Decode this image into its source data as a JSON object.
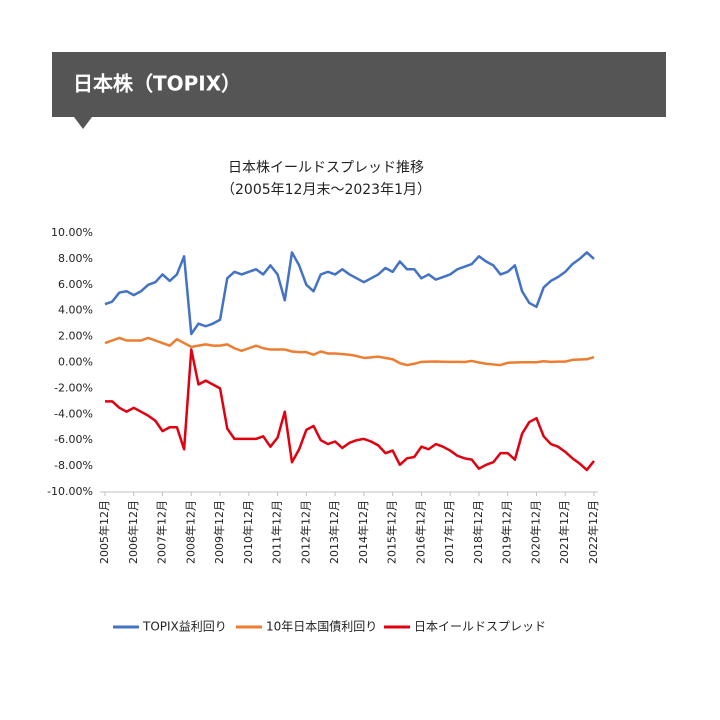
{
  "header": {
    "title": "日本株（TOPIX）"
  },
  "chart_data": {
    "type": "line",
    "title": "日本株イールドスプレッド推移",
    "subtitle": "（2005年12月末～2023年1月）",
    "categories": [
      "2005年12月",
      null,
      null,
      null,
      "2006年12月",
      null,
      null,
      null,
      "2007年12月",
      null,
      null,
      null,
      "2008年12月",
      null,
      null,
      null,
      "2009年12月",
      null,
      null,
      null,
      "2010年12月",
      null,
      null,
      null,
      "2011年12月",
      null,
      null,
      null,
      "2012年12月",
      null,
      null,
      null,
      "2013年12月",
      null,
      null,
      null,
      "2014年12月",
      null,
      null,
      null,
      "2015年12月",
      null,
      null,
      null,
      "2016年12月",
      null,
      null,
      null,
      "2017年12月",
      null,
      null,
      null,
      "2018年12月",
      null,
      null,
      null,
      "2019年12月",
      null,
      null,
      null,
      "2020年12月",
      null,
      null,
      null,
      "2021年12月",
      null,
      null,
      null,
      "2022年12月"
    ],
    "series": [
      {
        "name": "TOPIX益利回り",
        "color": "#4472c4",
        "values": [
          4.5,
          4.7,
          5.4,
          5.5,
          5.2,
          5.5,
          6.0,
          6.2,
          6.8,
          6.3,
          6.8,
          8.2,
          2.2,
          3.0,
          2.8,
          3.0,
          3.3,
          6.5,
          7.0,
          6.8,
          7.0,
          7.2,
          6.8,
          7.5,
          6.8,
          4.8,
          8.5,
          7.5,
          6.0,
          5.5,
          6.8,
          7.0,
          6.8,
          7.2,
          6.8,
          6.5,
          6.2,
          6.5,
          6.8,
          7.3,
          7.0,
          7.8,
          7.2,
          7.2,
          6.5,
          6.8,
          6.4,
          6.6,
          6.8,
          7.2,
          7.4,
          7.6,
          8.2,
          7.8,
          7.5,
          6.8,
          7.0,
          7.5,
          5.5,
          4.6,
          4.3,
          5.8,
          6.3,
          6.6,
          7.0,
          7.6,
          8.0,
          8.5,
          8.0
        ]
      },
      {
        "name": "10年日本国債利回り",
        "color": "#ed7d31",
        "values": [
          1.5,
          1.7,
          1.9,
          1.7,
          1.7,
          1.7,
          1.9,
          1.7,
          1.5,
          1.3,
          1.8,
          1.5,
          1.2,
          1.3,
          1.4,
          1.3,
          1.3,
          1.4,
          1.1,
          0.9,
          1.1,
          1.3,
          1.1,
          1.0,
          1.0,
          1.0,
          0.85,
          0.8,
          0.8,
          0.6,
          0.85,
          0.7,
          0.7,
          0.65,
          0.6,
          0.5,
          0.35,
          0.4,
          0.45,
          0.35,
          0.25,
          -0.05,
          -0.2,
          -0.1,
          0.05,
          0.07,
          0.08,
          0.06,
          0.05,
          0.05,
          0.04,
          0.12,
          0.0,
          -0.1,
          -0.15,
          -0.2,
          -0.02,
          0.0,
          0.02,
          0.02,
          0.02,
          0.1,
          0.05,
          0.07,
          0.07,
          0.2,
          0.23,
          0.25,
          0.42
        ]
      },
      {
        "name": "日本イールドスプレッド",
        "color": "#e00010",
        "values": [
          -3.0,
          -3.0,
          -3.5,
          -3.8,
          -3.5,
          -3.8,
          -4.1,
          -4.5,
          -5.3,
          -5.0,
          -5.0,
          -6.7,
          1.0,
          -1.7,
          -1.4,
          -1.7,
          -2.0,
          -5.1,
          -5.9,
          -5.9,
          -5.9,
          -5.9,
          -5.7,
          -6.5,
          -5.8,
          -3.8,
          -7.7,
          -6.7,
          -5.2,
          -4.9,
          -6.0,
          -6.3,
          -6.1,
          -6.6,
          -6.2,
          -6.0,
          -5.9,
          -6.1,
          -6.4,
          -7.0,
          -6.8,
          -7.9,
          -7.4,
          -7.3,
          -6.5,
          -6.7,
          -6.3,
          -6.5,
          -6.8,
          -7.2,
          -7.4,
          -7.5,
          -8.2,
          -7.9,
          -7.7,
          -7.0,
          -7.0,
          -7.5,
          -5.5,
          -4.6,
          -4.3,
          -5.7,
          -6.3,
          -6.5,
          -6.9,
          -7.4,
          -7.8,
          -8.3,
          -7.6
        ]
      }
    ],
    "ylim": [
      -10,
      10
    ],
    "yticks": [
      {
        "value": -10,
        "label": "-10.00%"
      },
      {
        "value": -8,
        "label": "-8.00%"
      },
      {
        "value": -6,
        "label": "-6.00%"
      },
      {
        "value": -4,
        "label": "-4.00%"
      },
      {
        "value": -2,
        "label": "-2.00%"
      },
      {
        "value": 0,
        "label": "0.00%"
      },
      {
        "value": 2,
        "label": "2.00%"
      },
      {
        "value": 4,
        "label": "4.00%"
      },
      {
        "value": 6,
        "label": "6.00%"
      },
      {
        "value": 8,
        "label": "8.00%"
      },
      {
        "value": 10,
        "label": "10.00%"
      }
    ],
    "grid": false,
    "legend": "bottom"
  }
}
